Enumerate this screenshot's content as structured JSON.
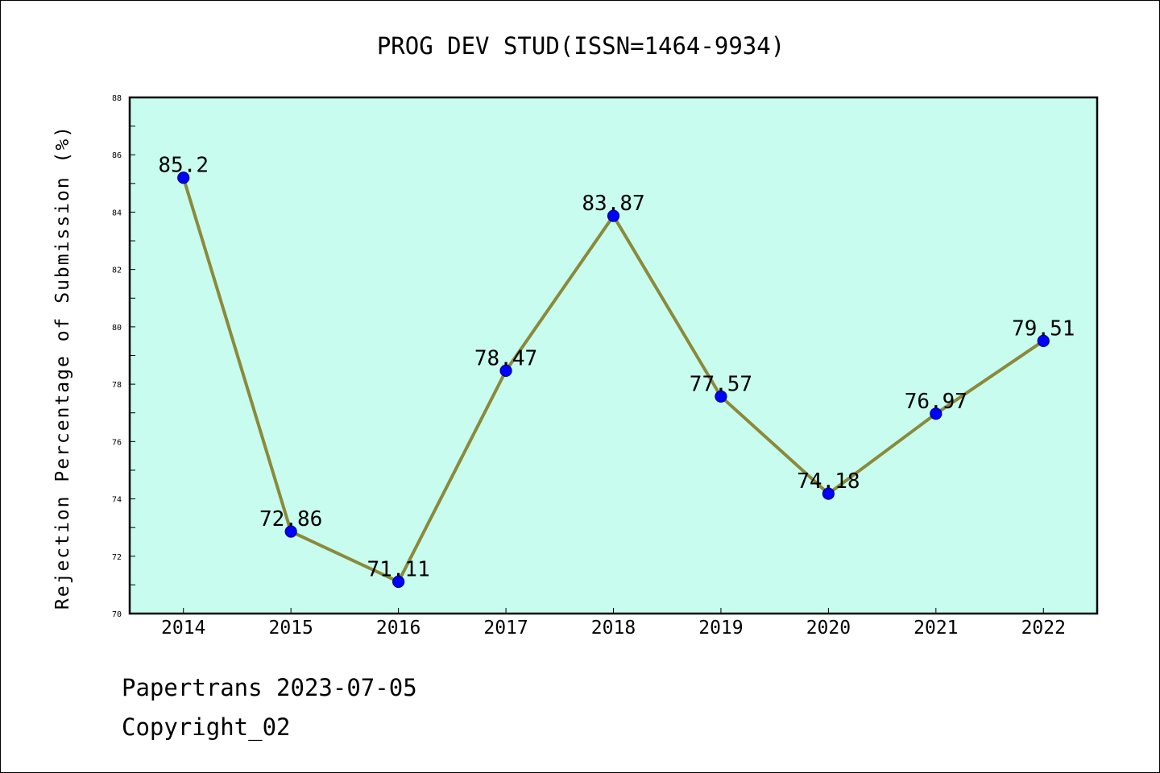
{
  "chart_data": {
    "type": "line",
    "title": "PROG DEV STUD(ISSN=1464-9934)",
    "xlabel": "",
    "ylabel": "Rejection Percentage of Submission (%)",
    "categories": [
      "2014",
      "2015",
      "2016",
      "2017",
      "2018",
      "2019",
      "2020",
      "2021",
      "2022"
    ],
    "series": [
      {
        "values": [
          85.2,
          72.86,
          71.11,
          78.47,
          83.87,
          77.57,
          74.18,
          76.97,
          79.51
        ],
        "data_labels": [
          "85.2",
          "72.86",
          "71.11",
          "78.47",
          "83.87",
          "77.57",
          "74.18",
          "76.97",
          "79.51"
        ]
      }
    ],
    "ylim": [
      70,
      88
    ],
    "y_ticks": [
      "70",
      "72",
      "74",
      "76",
      "78",
      "80",
      "82",
      "84",
      "86",
      "88"
    ],
    "grid": false,
    "legend": "none",
    "colors": {
      "plot_background": "#c8fcee",
      "line": "#8b8a3a",
      "marker": "#0000ff",
      "marker_edge": "#000088"
    }
  },
  "footer": {
    "line1": "Papertrans 2023-07-05",
    "line2": "Copyright_02"
  }
}
